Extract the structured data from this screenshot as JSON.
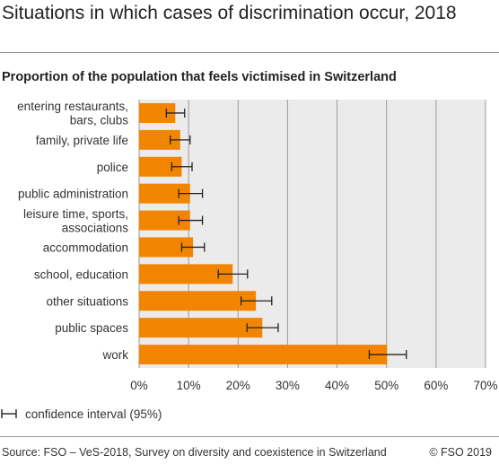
{
  "title": "Situations in which cases of discrimination occur, 2018",
  "subtitle": "Proportion of the population that feels victimised in Switzerland",
  "legend": {
    "ci_label": "confidence interval (95%)"
  },
  "footer": {
    "source": "Source: FSO – VeS-2018, Survey on diversity and coexistence in Switzerland",
    "copyright": "© FSO 2019"
  },
  "colors": {
    "bar": "#f28500",
    "plot_bg": "#ebebeb",
    "grid": "#9a9a9a",
    "error_bar": "#222222"
  },
  "chart_data": {
    "type": "bar",
    "orientation": "horizontal",
    "categories": [
      [
        "entering restaurants,",
        "bars, clubs"
      ],
      [
        "family, private life"
      ],
      [
        "police"
      ],
      [
        "public administration"
      ],
      [
        "leisure time, sports,",
        "associations"
      ],
      [
        "accommodation"
      ],
      [
        "school, education"
      ],
      [
        "other situations"
      ],
      [
        "public spaces"
      ],
      [
        "work"
      ]
    ],
    "values": [
      7.3,
      8.3,
      8.6,
      10.3,
      10.3,
      10.9,
      18.9,
      23.6,
      24.9,
      50.1
    ],
    "ci_low": [
      5.5,
      6.3,
      6.6,
      8.0,
      8.0,
      8.6,
      16.0,
      20.6,
      21.8,
      46.5
    ],
    "ci_high": [
      9.2,
      10.3,
      10.7,
      12.8,
      12.8,
      13.2,
      21.9,
      26.8,
      28.1,
      54.0
    ],
    "xlim": [
      0,
      70
    ],
    "xticks": [
      "0%",
      "10%",
      "20%",
      "30%",
      "40%",
      "50%",
      "60%",
      "70%"
    ],
    "xtick_values": [
      0,
      10,
      20,
      30,
      40,
      50,
      60,
      70
    ],
    "grid": true
  }
}
